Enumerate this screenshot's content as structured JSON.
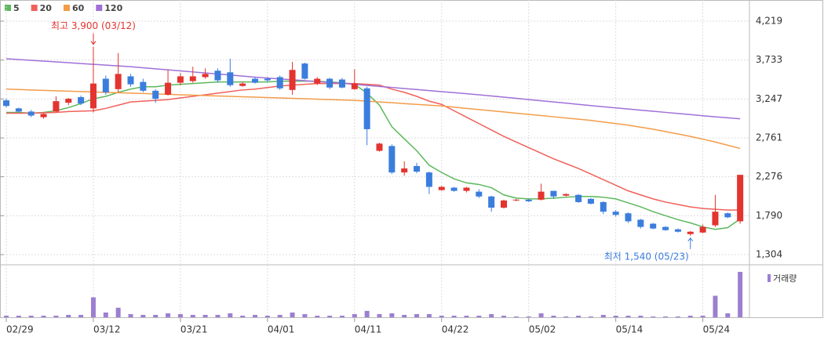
{
  "chart_data": {
    "type": "candlestick",
    "x": [
      "02/29",
      null,
      null,
      null,
      null,
      null,
      null,
      "03/12",
      null,
      null,
      null,
      null,
      null,
      null,
      "03/21",
      null,
      null,
      null,
      null,
      null,
      null,
      "04/01",
      null,
      null,
      null,
      null,
      null,
      null,
      "04/11",
      null,
      null,
      null,
      null,
      null,
      null,
      "04/22",
      null,
      null,
      null,
      null,
      null,
      null,
      "05/02",
      null,
      null,
      null,
      null,
      null,
      null,
      "05/14",
      null,
      null,
      null,
      null,
      null,
      null,
      "05/24",
      null,
      null,
      null
    ],
    "open": [
      3230,
      3130,
      3090,
      3020,
      3090,
      3200,
      3270,
      3130,
      3500,
      3370,
      3530,
      3460,
      3350,
      3300,
      3450,
      3470,
      3520,
      3600,
      3580,
      3410,
      3500,
      3500,
      3520,
      3360,
      3690,
      3440,
      3500,
      3490,
      3370,
      3380,
      2600,
      2660,
      2330,
      2410,
      2330,
      2110,
      2140,
      2100,
      2090,
      2030,
      1890,
      1980,
      1990,
      1990,
      2100,
      2040,
      2050,
      2000,
      1960,
      1840,
      1820,
      1740,
      1690,
      1650,
      1620,
      1560,
      1580,
      1670,
      1820,
      1720
    ],
    "high": [
      3250,
      3140,
      3110,
      3070,
      3280,
      3260,
      3290,
      3900,
      3540,
      3820,
      3560,
      3500,
      3370,
      3610,
      3570,
      3650,
      3630,
      3630,
      3750,
      3460,
      3520,
      3520,
      3540,
      3710,
      3700,
      3520,
      3510,
      3510,
      3620,
      3400,
      2700,
      2680,
      2470,
      2450,
      2340,
      2160,
      2150,
      2150,
      2120,
      2040,
      1990,
      2000,
      2000,
      2190,
      2100,
      2070,
      2060,
      2010,
      1970,
      1860,
      1830,
      1750,
      1700,
      1660,
      1630,
      1600,
      1680,
      2050,
      1830,
      2300
    ],
    "low": [
      3140,
      3080,
      3020,
      3000,
      3080,
      3170,
      3170,
      3080,
      3300,
      3330,
      3400,
      3330,
      3200,
      3290,
      3420,
      3450,
      3500,
      3450,
      3400,
      3400,
      3440,
      3460,
      3360,
      3300,
      3490,
      3420,
      3370,
      3380,
      3360,
      2670,
      2590,
      2310,
      2290,
      2320,
      2060,
      2100,
      2090,
      2080,
      2010,
      1840,
      1880,
      1970,
      1960,
      1980,
      2000,
      2030,
      1950,
      1930,
      1810,
      1780,
      1700,
      1630,
      1620,
      1600,
      1580,
      1540,
      1570,
      1650,
      1760,
      1690
    ],
    "close": [
      3160,
      3090,
      3040,
      3060,
      3220,
      3250,
      3190,
      3440,
      3330,
      3560,
      3430,
      3350,
      3250,
      3450,
      3530,
      3530,
      3560,
      3480,
      3420,
      3440,
      3450,
      3480,
      3380,
      3610,
      3500,
      3500,
      3390,
      3390,
      3440,
      2870,
      2690,
      2330,
      2380,
      2340,
      2150,
      2150,
      2100,
      2140,
      2030,
      1890,
      1980,
      1990,
      1970,
      2090,
      2030,
      2060,
      1960,
      1940,
      1840,
      1800,
      1720,
      1650,
      1630,
      1610,
      1590,
      1590,
      1650,
      1840,
      1770,
      2300
    ],
    "up_color": "#e3342f",
    "down_color": "#3b7ddd",
    "series": [
      {
        "name": "5",
        "color": "#5cb85c",
        "values": [
          3080,
          3080,
          3070,
          3080,
          3100,
          3140,
          3190,
          3250,
          3280,
          3330,
          3370,
          3400,
          3400,
          3420,
          3430,
          3440,
          3450,
          3460,
          3460,
          3460,
          3460,
          3460,
          3470,
          3470,
          3470,
          3470,
          3460,
          3450,
          3430,
          3320,
          3170,
          2900,
          2750,
          2600,
          2420,
          2330,
          2250,
          2200,
          2180,
          2140,
          2050,
          2010,
          2000,
          2000,
          2010,
          2020,
          2030,
          2030,
          2020,
          2000,
          1950,
          1900,
          1840,
          1790,
          1740,
          1700,
          1650,
          1620,
          1640,
          1750
        ],
        "axis": "y"
      },
      {
        "name": "20",
        "color": "#f0605a",
        "values": [
          3070,
          3070,
          3070,
          3075,
          3080,
          3090,
          3095,
          3100,
          3130,
          3170,
          3210,
          3220,
          3230,
          3240,
          3260,
          3280,
          3300,
          3320,
          3340,
          3360,
          3370,
          3390,
          3410,
          3420,
          3430,
          3440,
          3440,
          3440,
          3440,
          3430,
          3420,
          3370,
          3330,
          3280,
          3220,
          3180,
          3100,
          3020,
          2940,
          2860,
          2780,
          2710,
          2640,
          2570,
          2500,
          2440,
          2380,
          2310,
          2240,
          2170,
          2100,
          2050,
          2000,
          1960,
          1930,
          1900,
          1880,
          1870,
          1860,
          1860
        ]
      },
      {
        "name": "60",
        "color": "#f39c4a",
        "values": [
          3370,
          3365,
          3360,
          3355,
          3350,
          3345,
          3340,
          3335,
          3330,
          3325,
          3320,
          3315,
          3310,
          3305,
          3300,
          3295,
          3290,
          3285,
          3280,
          3275,
          3270,
          3265,
          3260,
          3255,
          3250,
          3245,
          3240,
          3235,
          3230,
          3220,
          3210,
          3200,
          3190,
          3180,
          3170,
          3160,
          3145,
          3130,
          3115,
          3100,
          3085,
          3070,
          3055,
          3040,
          3025,
          3010,
          2995,
          2980,
          2960,
          2940,
          2920,
          2895,
          2870,
          2840,
          2810,
          2780,
          2745,
          2710,
          2670,
          2630
        ]
      },
      {
        "name": "120",
        "color": "#a070d8",
        "values": [
          3750,
          3740,
          3730,
          3720,
          3710,
          3700,
          3690,
          3680,
          3670,
          3660,
          3650,
          3637,
          3624,
          3611,
          3598,
          3585,
          3572,
          3559,
          3546,
          3533,
          3520,
          3509,
          3498,
          3487,
          3476,
          3465,
          3454,
          3443,
          3430,
          3417,
          3404,
          3391,
          3378,
          3365,
          3352,
          3339,
          3326,
          3313,
          3300,
          3285,
          3270,
          3255,
          3240,
          3225,
          3210,
          3195,
          3180,
          3165,
          3150,
          3136,
          3122,
          3108,
          3094,
          3080,
          3066,
          3052,
          3038,
          3024,
          3012,
          3000
        ]
      }
    ],
    "volume": {
      "name": "거래량",
      "color": "#9c7fd0",
      "values": [
        2,
        2,
        2,
        2,
        2,
        3,
        3,
        25,
        6,
        12,
        4,
        3,
        3,
        5,
        4,
        3,
        3,
        3,
        5,
        2,
        3,
        2,
        3,
        6,
        4,
        2,
        2,
        2,
        4,
        8,
        4,
        5,
        3,
        4,
        4,
        2,
        2,
        2,
        2,
        4,
        2,
        1,
        1,
        5,
        2,
        1,
        2,
        1,
        3,
        2,
        2,
        2,
        1,
        1,
        1,
        2,
        2,
        27,
        5,
        57
      ]
    },
    "annotations": [
      "최고 3,900 (03/12)",
      "최저 1,540 (05/23)"
    ],
    "ylim": [
      1177,
      4483
    ],
    "yticks": [
      {
        "value": 1304,
        "label": "1,304"
      },
      {
        "value": 1790,
        "label": "1,790"
      },
      {
        "value": 2276,
        "label": "2,276"
      },
      {
        "value": 2761,
        "label": "2,761"
      },
      {
        "value": 3247,
        "label": "3,247"
      },
      {
        "value": 3733,
        "label": "3,733"
      },
      {
        "value": 4219,
        "label": "4,219"
      }
    ],
    "grid": true
  }
}
